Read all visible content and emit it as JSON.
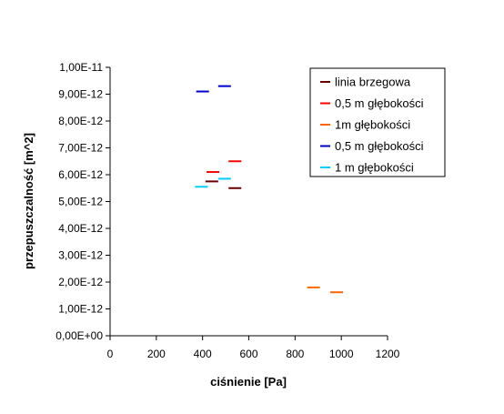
{
  "chart_data": {
    "type": "scatter",
    "title": "",
    "xlabel": "ciśnienie [Pa]",
    "ylabel": "przepuszczalność [m^2]",
    "xlim": [
      0,
      1200
    ],
    "ylim": [
      0,
      1e-11
    ],
    "x_ticks": [
      0,
      200,
      400,
      600,
      800,
      1000,
      1200
    ],
    "x_tick_labels": [
      "0",
      "200",
      "400",
      "600",
      "800",
      "1000",
      "1200"
    ],
    "y_ticks": [
      0,
      1e-12,
      2e-12,
      3e-12,
      4e-12,
      5e-12,
      6e-12,
      7e-12,
      8e-12,
      9e-12,
      1e-11
    ],
    "y_tick_labels": [
      "0,00E+00",
      "1,00E-12",
      "2,00E-12",
      "3,00E-12",
      "4,00E-12",
      "5,00E-12",
      "6,00E-12",
      "7,00E-12",
      "8,00E-12",
      "9,00E-12",
      "1,00E-11"
    ],
    "grid": false,
    "legend_position": "top-right",
    "marker": "dash",
    "series": [
      {
        "name": "linia brzegowa",
        "color": "#660000",
        "points": [
          [
            440,
            5.75e-12
          ],
          [
            540,
            5.5e-12
          ]
        ]
      },
      {
        "name": "0,5 m głębokości",
        "color": "#ff0000",
        "points": [
          [
            445,
            6.1e-12
          ],
          [
            540,
            6.5e-12
          ]
        ]
      },
      {
        "name": "1m głębokości",
        "color": "#ff6600",
        "points": [
          [
            880,
            1.8e-12
          ],
          [
            980,
            1.62e-12
          ]
        ]
      },
      {
        "name": "0,5 m głębokości",
        "color": "#0000cc",
        "points": [
          [
            400,
            9.1e-12
          ],
          [
            495,
            9.3e-12
          ]
        ]
      },
      {
        "name": "1 m głębokości",
        "color": "#00ccff",
        "points": [
          [
            395,
            5.55e-12
          ],
          [
            495,
            5.85e-12
          ]
        ]
      }
    ]
  }
}
